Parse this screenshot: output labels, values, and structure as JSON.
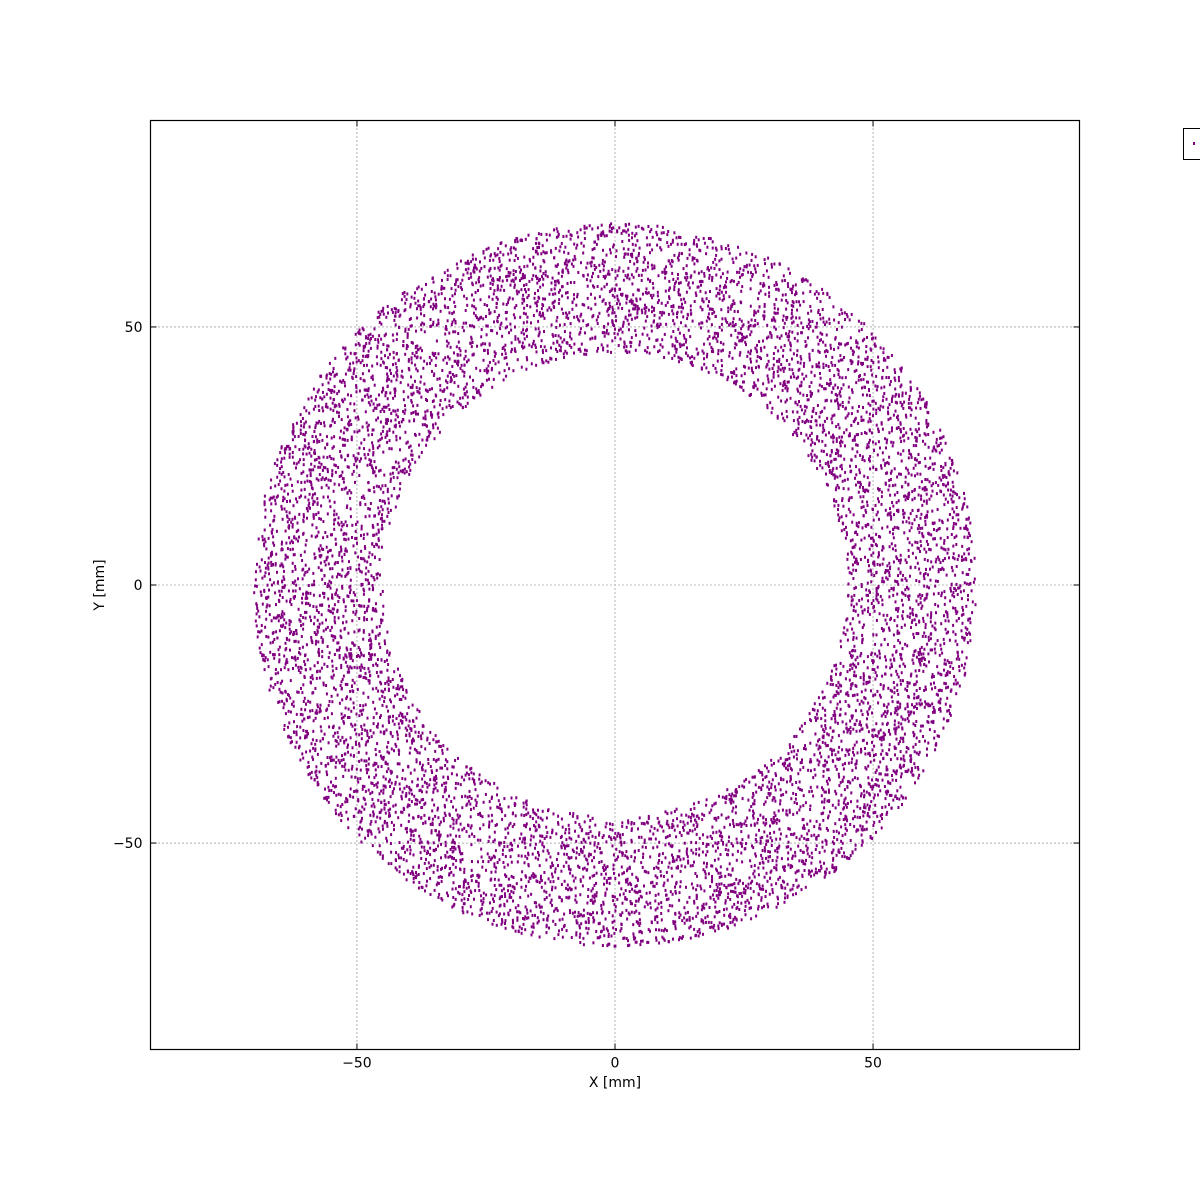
{
  "chart_data": {
    "type": "scatter",
    "title": "",
    "xlabel": "X [mm]",
    "ylabel": "Y [mm]",
    "xlim": [
      -90,
      90
    ],
    "ylim": [
      -90,
      90
    ],
    "xticks": [
      -50,
      0,
      50
    ],
    "yticks": [
      -50,
      0,
      50
    ],
    "xtick_labels": [
      "−50",
      "0",
      "50"
    ],
    "ytick_labels": [
      "−50",
      "0",
      "50"
    ],
    "grid": true,
    "legend": {
      "placement": "outside-top-right",
      "entries": [
        ""
      ]
    },
    "series": [
      {
        "marker_color": "#800080",
        "distribution": "uniform annulus centered at origin",
        "center": [
          0,
          0
        ],
        "inner_radius": 45,
        "outer_radius": 70,
        "point_count": 9000
      }
    ]
  }
}
